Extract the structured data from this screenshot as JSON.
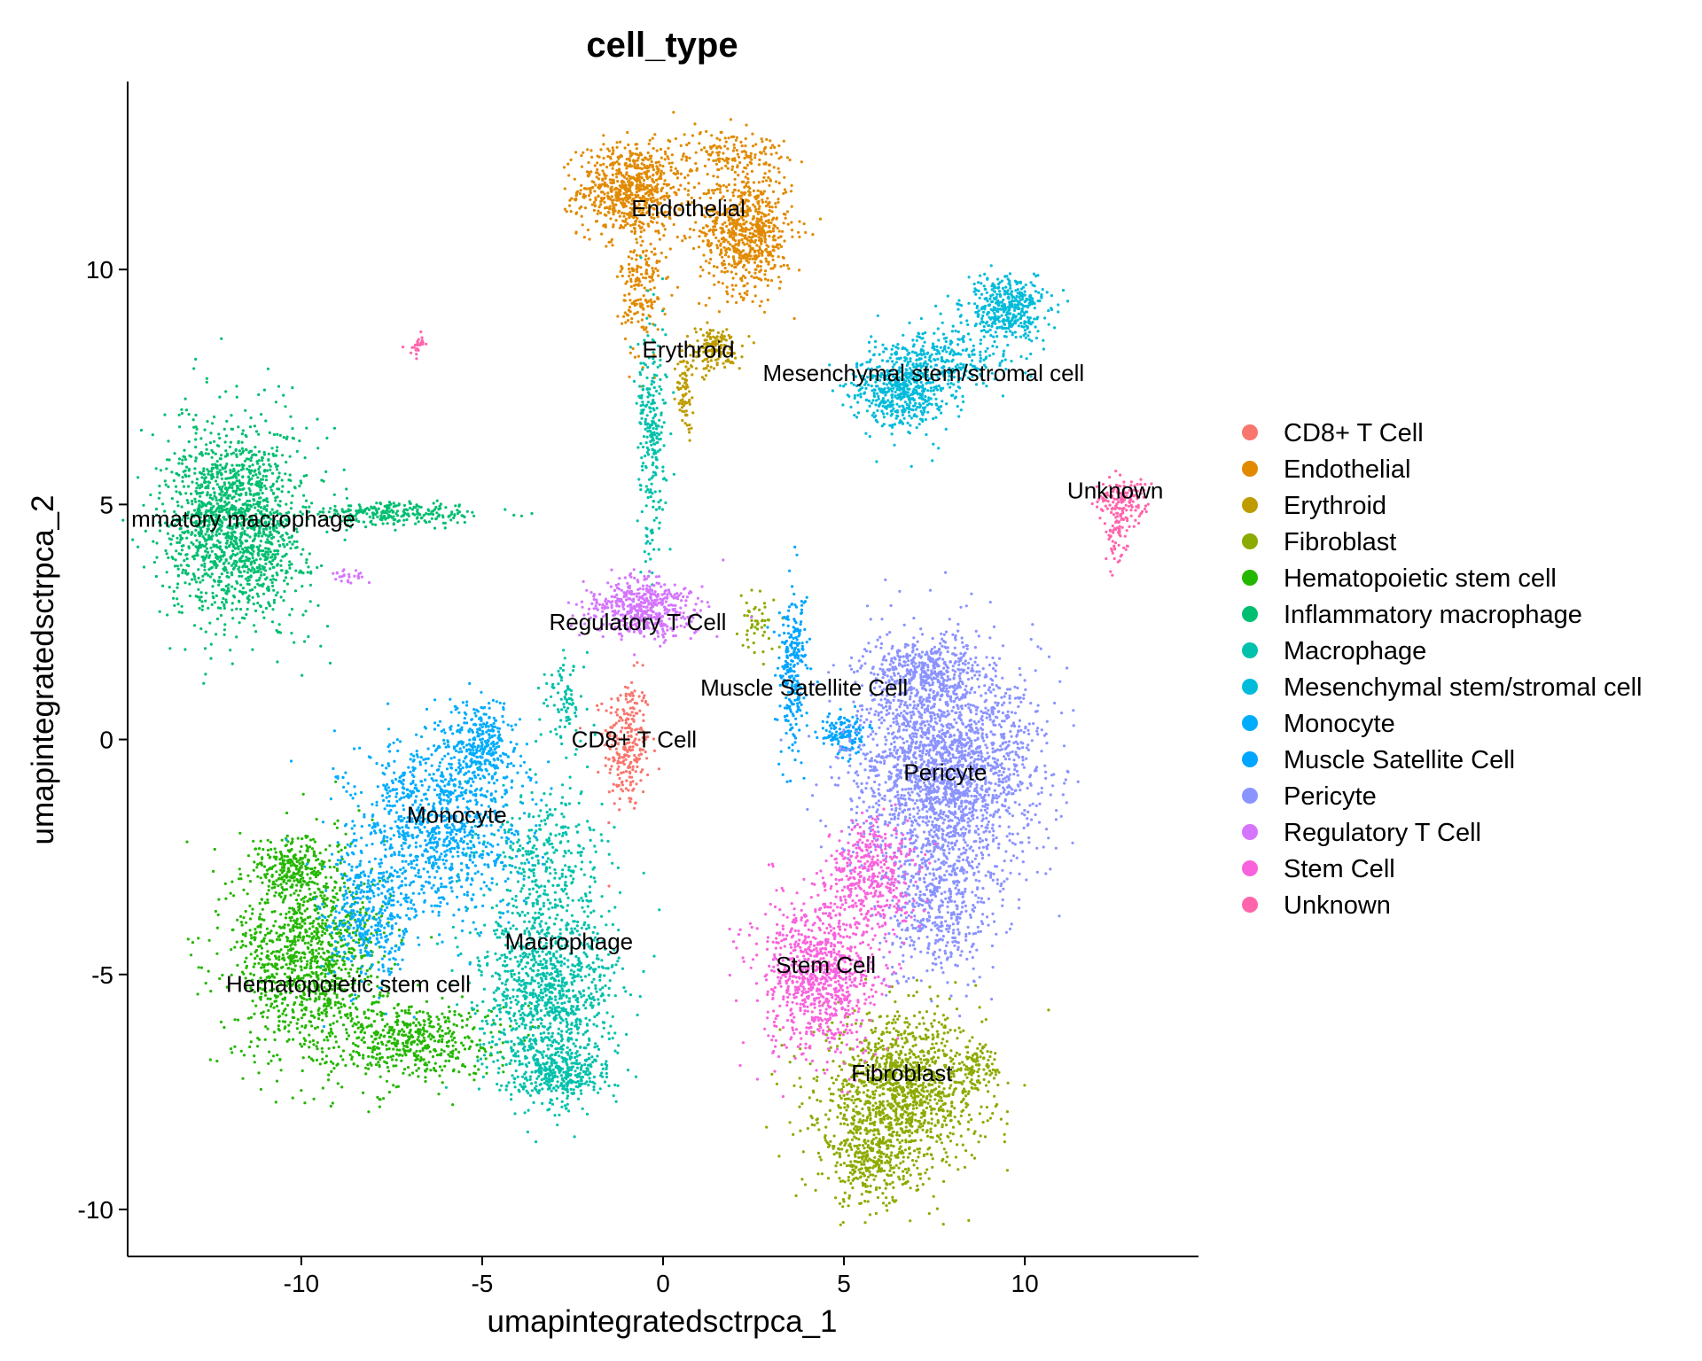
{
  "chart_data": {
    "type": "scatter",
    "title": "cell_type",
    "xlabel": "umapintegratedsctrpca_1",
    "ylabel": "umapintegratedsctrpca_2",
    "xlim": [
      -14.8,
      14.8
    ],
    "ylim": [
      -11.0,
      14.0
    ],
    "x_ticks": [
      -10,
      -5,
      0,
      5,
      10
    ],
    "x_tick_labels": [
      "-10",
      "-5",
      "0",
      "5",
      "10"
    ],
    "y_ticks": [
      -10,
      -5,
      0,
      5,
      10
    ],
    "y_tick_labels": [
      "-10",
      "-5",
      "0",
      "5",
      "10"
    ],
    "grid": false,
    "legend_position": "right",
    "series": [
      {
        "name": "CD8+ T Cell",
        "color": "#F8766D",
        "blobs": [
          {
            "center": [
              -1.0,
              -0.1
            ],
            "spread": [
              0.4,
              0.9
            ],
            "count": 260
          }
        ]
      },
      {
        "name": "Endothelial",
        "color": "#E18A00",
        "blobs": [
          {
            "center": [
              -0.9,
              11.7
            ],
            "spread": [
              0.9,
              0.6
            ],
            "count": 700
          },
          {
            "center": [
              2.3,
              10.8
            ],
            "spread": [
              0.8,
              0.8
            ],
            "count": 700
          },
          {
            "center": [
              1.8,
              12.5
            ],
            "spread": [
              1.0,
              0.3
            ],
            "count": 150
          },
          {
            "center": [
              -0.6,
              9.6
            ],
            "spread": [
              0.35,
              0.9
            ],
            "count": 180
          }
        ]
      },
      {
        "name": "Erythroid",
        "color": "#BE9C00",
        "blobs": [
          {
            "center": [
              1.4,
              8.3
            ],
            "spread": [
              0.5,
              0.3
            ],
            "count": 160
          },
          {
            "center": [
              0.6,
              7.4
            ],
            "spread": [
              0.15,
              0.5
            ],
            "count": 70
          }
        ]
      },
      {
        "name": "Fibroblast",
        "color": "#8CAB00",
        "blobs": [
          {
            "center": [
              6.6,
              -7.5
            ],
            "spread": [
              1.4,
              1.0
            ],
            "count": 1300
          },
          {
            "center": [
              5.7,
              -9.0
            ],
            "spread": [
              0.7,
              0.6
            ],
            "count": 300
          },
          {
            "center": [
              8.7,
              -7.0
            ],
            "spread": [
              0.3,
              0.3
            ],
            "count": 70
          },
          {
            "center": [
              2.6,
              2.4
            ],
            "spread": [
              0.3,
              0.4
            ],
            "count": 50
          }
        ]
      },
      {
        "name": "Hematopoietic stem cell",
        "color": "#24B700",
        "blobs": [
          {
            "center": [
              -9.8,
              -4.6
            ],
            "spread": [
              1.3,
              1.4
            ],
            "count": 1200
          },
          {
            "center": [
              -7.0,
              -6.4
            ],
            "spread": [
              1.5,
              0.5
            ],
            "count": 500
          },
          {
            "center": [
              -10.3,
              -2.7
            ],
            "spread": [
              0.6,
              0.4
            ],
            "count": 200
          }
        ]
      },
      {
        "name": "Inflammatory macrophage",
        "color": "#00BE70",
        "blobs": [
          {
            "center": [
              -11.8,
              4.6
            ],
            "spread": [
              1.2,
              1.3
            ],
            "count": 1600
          },
          {
            "center": [
              -7.3,
              4.8
            ],
            "spread": [
              1.5,
              0.15
            ],
            "count": 250
          }
        ]
      },
      {
        "name": "Macrophage",
        "color": "#00C1AB",
        "blobs": [
          {
            "center": [
              -3.2,
              -5.4
            ],
            "spread": [
              1.2,
              1.3
            ],
            "count": 1100
          },
          {
            "center": [
              -2.8,
              -7.1
            ],
            "spread": [
              0.8,
              0.4
            ],
            "count": 300
          },
          {
            "center": [
              -3.2,
              -2.5
            ],
            "spread": [
              1.0,
              1.0
            ],
            "count": 300
          },
          {
            "center": [
              -2.7,
              0.8
            ],
            "spread": [
              0.4,
              0.6
            ],
            "count": 90
          },
          {
            "center": [
              -0.3,
              6.5
            ],
            "spread": [
              0.25,
              1.6
            ],
            "count": 260
          }
        ]
      },
      {
        "name": "Mesenchymal stem/stromal cell",
        "color": "#00BBDA",
        "blobs": [
          {
            "center": [
              6.6,
              7.4
            ],
            "spread": [
              0.8,
              0.5
            ],
            "count": 500
          },
          {
            "center": [
              7.8,
              8.1
            ],
            "spread": [
              1.2,
              0.4
            ],
            "count": 300
          },
          {
            "center": [
              9.5,
              9.2
            ],
            "spread": [
              0.7,
              0.4
            ],
            "count": 400
          }
        ]
      },
      {
        "name": "Monocyte",
        "color": "#00ACFC",
        "blobs": [
          {
            "center": [
              -6.2,
              -1.8
            ],
            "spread": [
              1.4,
              1.2
            ],
            "count": 1000
          },
          {
            "center": [
              -8.2,
              -3.8
            ],
            "spread": [
              0.8,
              1.0
            ],
            "count": 400
          },
          {
            "center": [
              -5.0,
              -0.2
            ],
            "spread": [
              0.6,
              0.6
            ],
            "count": 300
          }
        ]
      },
      {
        "name": "Muscle Satellite Cell",
        "color": "#00A5FF",
        "blobs": [
          {
            "center": [
              3.6,
              1.5
            ],
            "spread": [
              0.25,
              1.1
            ],
            "count": 260
          },
          {
            "center": [
              5.0,
              0.1
            ],
            "spread": [
              0.4,
              0.3
            ],
            "count": 140
          }
        ]
      },
      {
        "name": "Pericyte",
        "color": "#8B93FF",
        "blobs": [
          {
            "center": [
              7.8,
              -0.5
            ],
            "spread": [
              1.6,
              1.5
            ],
            "count": 2300
          },
          {
            "center": [
              7.6,
              -3.5
            ],
            "spread": [
              1.0,
              1.0
            ],
            "count": 500
          },
          {
            "center": [
              7.2,
              1.5
            ],
            "spread": [
              0.9,
              0.4
            ],
            "count": 300
          }
        ]
      },
      {
        "name": "Regulatory T Cell",
        "color": "#D575FE",
        "blobs": [
          {
            "center": [
              -0.6,
              2.8
            ],
            "spread": [
              0.9,
              0.4
            ],
            "count": 500
          },
          {
            "center": [
              -8.8,
              3.5
            ],
            "spread": [
              0.4,
              0.12
            ],
            "count": 25
          }
        ]
      },
      {
        "name": "Stem Cell",
        "color": "#F962DD",
        "blobs": [
          {
            "center": [
              4.3,
              -5.0
            ],
            "spread": [
              1.0,
              1.1
            ],
            "count": 900
          },
          {
            "center": [
              5.8,
              -3.0
            ],
            "spread": [
              0.8,
              0.8
            ],
            "count": 400
          }
        ]
      },
      {
        "name": "Unknown",
        "color": "#FF65AC",
        "blobs": [
          {
            "center": [
              12.7,
              5.1
            ],
            "spread": [
              0.4,
              0.3
            ],
            "count": 140
          },
          {
            "center": [
              12.5,
              4.3
            ],
            "spread": [
              0.2,
              0.4
            ],
            "count": 60
          },
          {
            "center": [
              -6.8,
              8.4
            ],
            "spread": [
              0.2,
              0.15
            ],
            "count": 25
          }
        ]
      }
    ],
    "cluster_labels": [
      {
        "text": "Endothelial",
        "x": 0.7,
        "y": 11.3
      },
      {
        "text": "Erythroid",
        "x": 0.7,
        "y": 8.3
      },
      {
        "text": "Mesenchymal stem/stromal cell",
        "x": 7.2,
        "y": 7.8
      },
      {
        "text": "Unknown",
        "x": 12.5,
        "y": 5.3
      },
      {
        "text": "mmatory macrophage",
        "x": -11.6,
        "y": 4.7
      },
      {
        "text": "Regulatory T Cell",
        "x": -0.7,
        "y": 2.5
      },
      {
        "text": "Muscle Satellite Cell",
        "x": 3.9,
        "y": 1.1
      },
      {
        "text": "CD8+ T Cell",
        "x": -0.8,
        "y": 0.0
      },
      {
        "text": "Pericyte",
        "x": 7.8,
        "y": -0.7
      },
      {
        "text": "Monocyte",
        "x": -5.7,
        "y": -1.6
      },
      {
        "text": "Macrophage",
        "x": -2.6,
        "y": -4.3
      },
      {
        "text": "Stem Cell",
        "x": 4.5,
        "y": -4.8
      },
      {
        "text": "Hematopoietic stem cell",
        "x": -8.7,
        "y": -5.2
      },
      {
        "text": "Fibroblast",
        "x": 6.6,
        "y": -7.1
      }
    ]
  }
}
